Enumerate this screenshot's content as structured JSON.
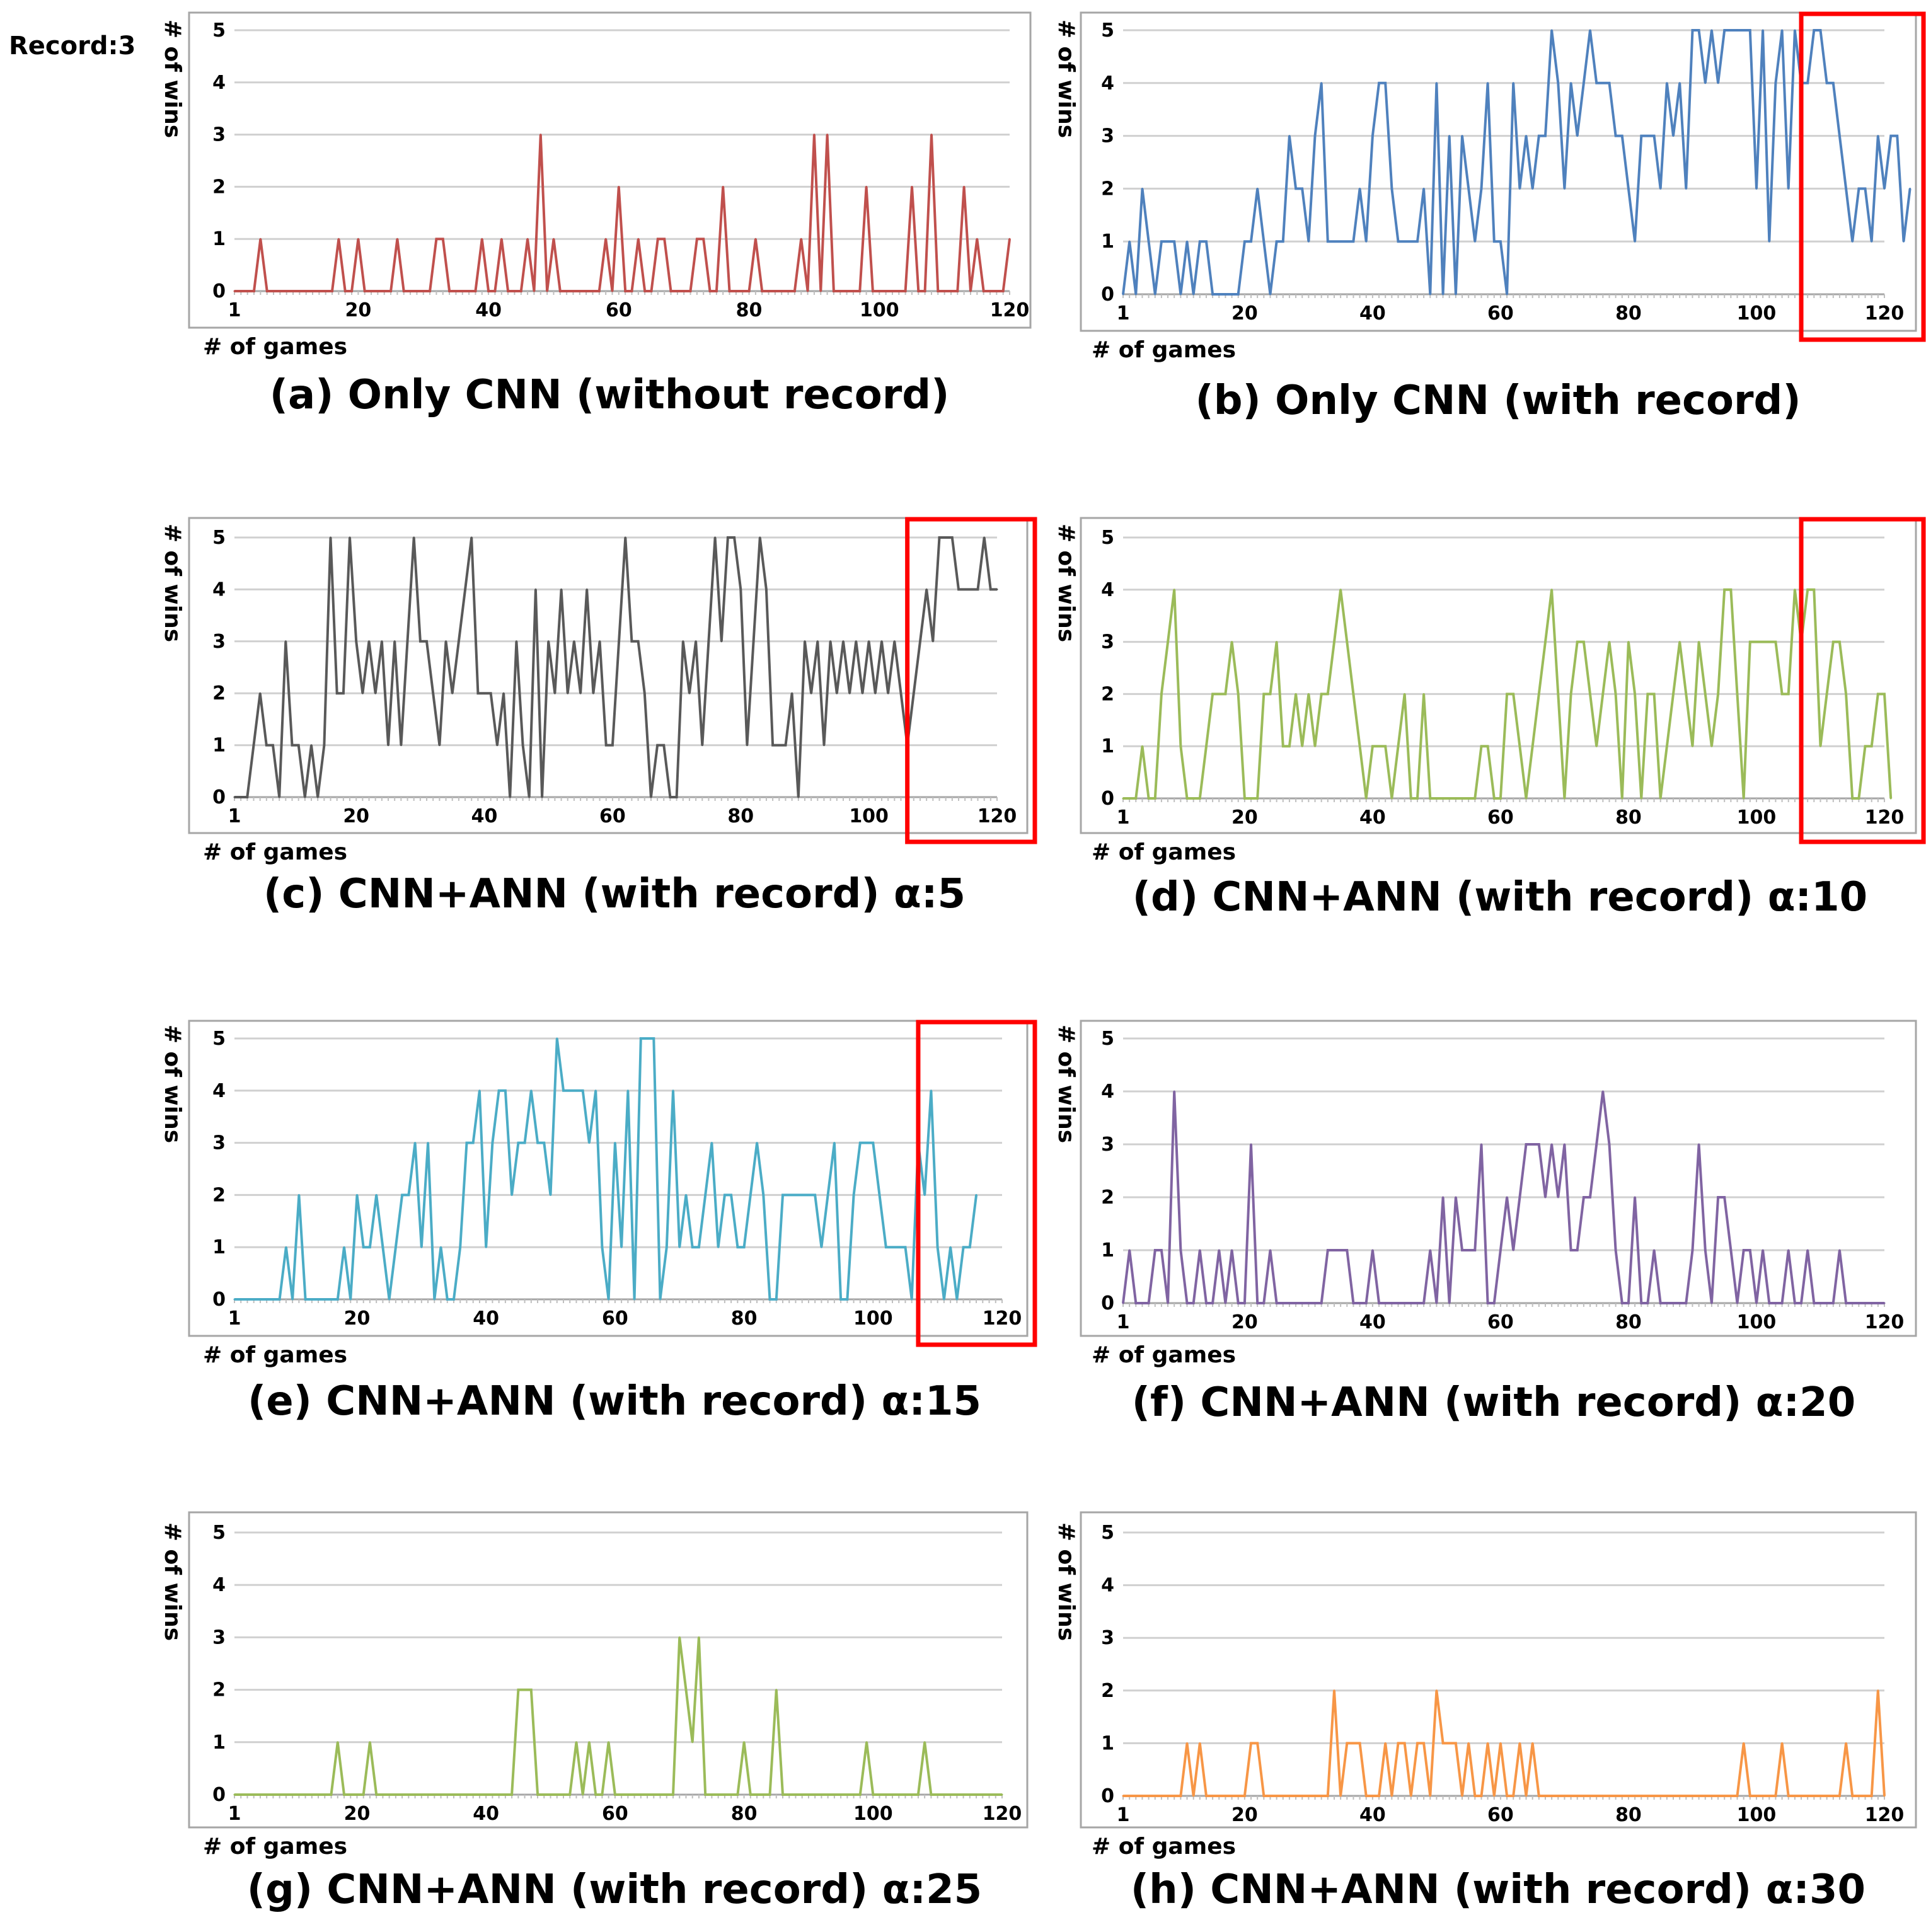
{
  "figure": {
    "record_label": "Record:3",
    "y_axis_label": "# of wins",
    "x_axis_label": "# of games"
  },
  "chart_data": [
    {
      "id": "a",
      "type": "line",
      "title": "(a) Only CNN (without record)",
      "color": "#c0504d",
      "xlabel": "# of games",
      "ylabel": "# of wins",
      "xlim": [
        1,
        120
      ],
      "ylim": [
        0,
        5
      ],
      "x_ticks": [
        1,
        20,
        40,
        60,
        80,
        100,
        120
      ],
      "y_ticks": [
        0,
        1,
        2,
        3,
        4,
        5
      ],
      "highlight": null,
      "series": [
        {
          "name": "Only CNN (without record)",
          "x_start": 1,
          "values": [
            0,
            0,
            0,
            0,
            1,
            0,
            0,
            0,
            0,
            0,
            0,
            0,
            0,
            0,
            0,
            0,
            1,
            0,
            0,
            1,
            0,
            0,
            0,
            0,
            0,
            1,
            0,
            0,
            0,
            0,
            0,
            1,
            1,
            0,
            0,
            0,
            0,
            0,
            1,
            0,
            0,
            1,
            0,
            0,
            0,
            1,
            0,
            3,
            0,
            1,
            0,
            0,
            0,
            0,
            0,
            0,
            0,
            1,
            0,
            2,
            0,
            0,
            1,
            0,
            0,
            1,
            1,
            0,
            0,
            0,
            0,
            1,
            1,
            0,
            0,
            2,
            0,
            0,
            0,
            0,
            1,
            0,
            0,
            0,
            0,
            0,
            0,
            1,
            0,
            3,
            0,
            3,
            0,
            0,
            0,
            0,
            0,
            2,
            0,
            0,
            0,
            0,
            0,
            0,
            2,
            0,
            0,
            3,
            0,
            0,
            0,
            0,
            2,
            0,
            1,
            0,
            0,
            0,
            0,
            1
          ]
        }
      ]
    },
    {
      "id": "b",
      "type": "line",
      "title": "(b) Only CNN (with record)",
      "color": "#4f81bd",
      "xlabel": "# of games",
      "ylabel": "# of wins",
      "xlim": [
        1,
        120
      ],
      "ylim": [
        0,
        5
      ],
      "x_ticks": [
        1,
        20,
        40,
        60,
        80,
        100,
        120
      ],
      "y_ticks": [
        0,
        1,
        2,
        3,
        4,
        5
      ],
      "highlight": [
        107,
        125
      ],
      "series": [
        {
          "name": "Only CNN (with record)",
          "x_start": 1,
          "values": [
            0,
            1,
            0,
            2,
            1,
            0,
            1,
            1,
            1,
            0,
            1,
            0,
            1,
            1,
            0,
            0,
            0,
            0,
            0,
            1,
            1,
            2,
            1,
            0,
            1,
            1,
            3,
            2,
            2,
            1,
            3,
            4,
            1,
            1,
            1,
            1,
            1,
            2,
            1,
            3,
            4,
            4,
            2,
            1,
            1,
            1,
            1,
            2,
            0,
            4,
            0,
            3,
            0,
            3,
            2,
            1,
            2,
            4,
            1,
            1,
            0,
            4,
            2,
            3,
            2,
            3,
            3,
            5,
            4,
            2,
            4,
            3,
            4,
            5,
            4,
            4,
            4,
            3,
            3,
            2,
            1,
            3,
            3,
            3,
            2,
            4,
            3,
            4,
            2,
            5,
            5,
            4,
            5,
            4,
            5,
            5,
            5,
            5,
            5,
            2,
            5,
            1,
            4,
            5,
            2,
            5,
            4,
            4,
            5,
            5,
            4,
            4,
            3,
            2,
            1,
            2,
            2,
            1,
            3,
            2,
            3,
            3,
            1,
            2
          ]
        }
      ]
    },
    {
      "id": "c",
      "type": "line",
      "title": "(c) CNN+ANN (with record) α:5",
      "color": "#595959",
      "xlabel": "# of games",
      "ylabel": "# of wins",
      "xlim": [
        1,
        120
      ],
      "ylim": [
        0,
        5
      ],
      "x_ticks": [
        1,
        20,
        40,
        60,
        80,
        100,
        120
      ],
      "y_ticks": [
        0,
        1,
        2,
        3,
        4,
        5
      ],
      "highlight": [
        106,
        125
      ],
      "series": [
        {
          "name": "CNN+ANN (with record) α:5",
          "x_start": 1,
          "values": [
            0,
            0,
            0,
            1,
            2,
            1,
            1,
            0,
            3,
            1,
            1,
            0,
            1,
            0,
            1,
            5,
            2,
            2,
            5,
            3,
            2,
            3,
            2,
            3,
            1,
            3,
            1,
            3,
            5,
            3,
            3,
            2,
            1,
            3,
            2,
            3,
            4,
            5,
            2,
            2,
            2,
            1,
            2,
            0,
            3,
            1,
            0,
            4,
            0,
            3,
            2,
            4,
            2,
            3,
            2,
            4,
            2,
            3,
            1,
            1,
            3,
            5,
            3,
            3,
            2,
            0,
            1,
            1,
            0,
            0,
            3,
            2,
            3,
            1,
            3,
            5,
            3,
            5,
            5,
            4,
            1,
            3,
            5,
            4,
            1,
            1,
            1,
            2,
            0,
            3,
            2,
            3,
            1,
            3,
            2,
            3,
            2,
            3,
            2,
            3,
            2,
            3,
            2,
            3,
            2,
            1,
            2,
            3,
            4,
            3,
            5,
            5,
            5,
            4,
            4,
            4,
            4,
            5,
            4,
            4
          ]
        }
      ]
    },
    {
      "id": "d",
      "type": "line",
      "title": "(d) CNN+ANN (with record) α:10",
      "color": "#9bbb59",
      "xlabel": "# of games",
      "ylabel": "# of wins",
      "xlim": [
        1,
        120
      ],
      "ylim": [
        0,
        5
      ],
      "x_ticks": [
        1,
        20,
        40,
        60,
        80,
        100,
        120
      ],
      "y_ticks": [
        0,
        1,
        2,
        3,
        4,
        5
      ],
      "highlight": [
        107,
        125
      ],
      "series": [
        {
          "name": "CNN+ANN (with record) α:10",
          "x_start": 1,
          "values": [
            0,
            0,
            0,
            1,
            0,
            0,
            2,
            3,
            4,
            1,
            0,
            0,
            0,
            1,
            2,
            2,
            2,
            3,
            2,
            0,
            0,
            0,
            2,
            2,
            3,
            1,
            1,
            2,
            1,
            2,
            1,
            2,
            2,
            3,
            4,
            3,
            2,
            1,
            0,
            1,
            1,
            1,
            0,
            1,
            2,
            0,
            0,
            2,
            0,
            0,
            0,
            0,
            0,
            0,
            0,
            0,
            1,
            1,
            0,
            0,
            2,
            2,
            1,
            0,
            1,
            2,
            3,
            4,
            2,
            0,
            2,
            3,
            3,
            2,
            1,
            2,
            3,
            2,
            0,
            3,
            2,
            0,
            2,
            2,
            0,
            1,
            2,
            3,
            2,
            1,
            3,
            2,
            1,
            2,
            4,
            4,
            2,
            0,
            3,
            3,
            3,
            3,
            3,
            2,
            2,
            4,
            3,
            4,
            4,
            1,
            2,
            3,
            3,
            2,
            0,
            0,
            1,
            1,
            2,
            2,
            0
          ]
        }
      ]
    },
    {
      "id": "e",
      "type": "line",
      "title": "(e) CNN+ANN (with record) α:15",
      "color": "#4bacc6",
      "xlabel": "# of games",
      "ylabel": "# of wins",
      "xlim": [
        1,
        120
      ],
      "ylim": [
        0,
        5
      ],
      "x_ticks": [
        1,
        20,
        40,
        60,
        80,
        100,
        120
      ],
      "y_ticks": [
        0,
        1,
        2,
        3,
        4,
        5
      ],
      "highlight": [
        107,
        125
      ],
      "series": [
        {
          "name": "CNN+ANN (with record) α:15",
          "x_start": 1,
          "values": [
            0,
            0,
            0,
            0,
            0,
            0,
            0,
            0,
            1,
            0,
            2,
            0,
            0,
            0,
            0,
            0,
            0,
            1,
            0,
            2,
            1,
            1,
            2,
            1,
            0,
            1,
            2,
            2,
            3,
            1,
            3,
            0,
            1,
            0,
            0,
            1,
            3,
            3,
            4,
            1,
            3,
            4,
            4,
            2,
            3,
            3,
            4,
            3,
            3,
            2,
            5,
            4,
            4,
            4,
            4,
            3,
            4,
            1,
            0,
            3,
            1,
            4,
            0,
            5,
            5,
            5,
            0,
            1,
            4,
            1,
            2,
            1,
            1,
            2,
            3,
            1,
            2,
            2,
            1,
            1,
            2,
            3,
            2,
            0,
            0,
            2,
            2,
            2,
            2,
            2,
            2,
            1,
            2,
            3,
            0,
            0,
            2,
            3,
            3,
            3,
            2,
            1,
            1,
            1,
            1,
            0,
            3,
            2,
            4,
            1,
            0,
            1,
            0,
            1,
            1,
            2
          ]
        }
      ]
    },
    {
      "id": "f",
      "type": "line",
      "title": "(f) CNN+ANN (with record) α:20",
      "color": "#8064a2",
      "xlabel": "# of games",
      "ylabel": "# of wins",
      "xlim": [
        1,
        120
      ],
      "ylim": [
        0,
        5
      ],
      "x_ticks": [
        1,
        20,
        40,
        60,
        80,
        100,
        120
      ],
      "y_ticks": [
        0,
        1,
        2,
        3,
        4,
        5
      ],
      "highlight": null,
      "series": [
        {
          "name": "CNN+ANN (with record) α:20",
          "x_start": 1,
          "values": [
            0,
            1,
            0,
            0,
            0,
            1,
            1,
            0,
            4,
            1,
            0,
            0,
            1,
            0,
            0,
            1,
            0,
            1,
            0,
            0,
            3,
            0,
            0,
            1,
            0,
            0,
            0,
            0,
            0,
            0,
            0,
            0,
            1,
            1,
            1,
            1,
            0,
            0,
            0,
            1,
            0,
            0,
            0,
            0,
            0,
            0,
            0,
            0,
            1,
            0,
            2,
            0,
            2,
            1,
            1,
            1,
            3,
            0,
            0,
            1,
            2,
            1,
            2,
            3,
            3,
            3,
            2,
            3,
            2,
            3,
            1,
            1,
            2,
            2,
            3,
            4,
            3,
            1,
            0,
            0,
            2,
            0,
            0,
            1,
            0,
            0,
            0,
            0,
            0,
            1,
            3,
            1,
            0,
            2,
            2,
            1,
            0,
            1,
            1,
            0,
            1,
            0,
            0,
            0,
            1,
            0,
            0,
            1,
            0,
            0,
            0,
            0,
            1,
            0,
            0,
            0,
            0,
            0,
            0,
            0
          ]
        }
      ]
    },
    {
      "id": "g",
      "type": "line",
      "title": "(g) CNN+ANN (with record) α:25",
      "color": "#9bbb59",
      "xlabel": "# of games",
      "ylabel": "# of wins",
      "xlim": [
        1,
        120
      ],
      "ylim": [
        0,
        5
      ],
      "x_ticks": [
        1,
        20,
        40,
        60,
        80,
        100,
        120
      ],
      "y_ticks": [
        0,
        1,
        2,
        3,
        4,
        5
      ],
      "highlight": null,
      "series": [
        {
          "name": "CNN+ANN (with record) α:25",
          "x_start": 1,
          "values": [
            0,
            0,
            0,
            0,
            0,
            0,
            0,
            0,
            0,
            0,
            0,
            0,
            0,
            0,
            0,
            0,
            1,
            0,
            0,
            0,
            0,
            1,
            0,
            0,
            0,
            0,
            0,
            0,
            0,
            0,
            0,
            0,
            0,
            0,
            0,
            0,
            0,
            0,
            0,
            0,
            0,
            0,
            0,
            0,
            2,
            2,
            2,
            0,
            0,
            0,
            0,
            0,
            0,
            1,
            0,
            1,
            0,
            0,
            1,
            0,
            0,
            0,
            0,
            0,
            0,
            0,
            0,
            0,
            0,
            3,
            2,
            1,
            3,
            0,
            0,
            0,
            0,
            0,
            0,
            1,
            0,
            0,
            0,
            0,
            2,
            0,
            0,
            0,
            0,
            0,
            0,
            0,
            0,
            0,
            0,
            0,
            0,
            0,
            1,
            0,
            0,
            0,
            0,
            0,
            0,
            0,
            0,
            1,
            0,
            0,
            0,
            0,
            0,
            0,
            0,
            0,
            0,
            0,
            0,
            0
          ]
        }
      ]
    },
    {
      "id": "h",
      "type": "line",
      "title": "(h) CNN+ANN (with record) α:30",
      "color": "#f79646",
      "xlabel": "# of games",
      "ylabel": "# of wins",
      "xlim": [
        1,
        120
      ],
      "ylim": [
        0,
        5
      ],
      "x_ticks": [
        1,
        20,
        40,
        60,
        80,
        100,
        120
      ],
      "y_ticks": [
        0,
        1,
        2,
        3,
        4,
        5
      ],
      "highlight": null,
      "series": [
        {
          "name": "CNN+ANN (with record) α:30",
          "x_start": 1,
          "values": [
            0,
            0,
            0,
            0,
            0,
            0,
            0,
            0,
            0,
            0,
            1,
            0,
            1,
            0,
            0,
            0,
            0,
            0,
            0,
            0,
            1,
            1,
            0,
            0,
            0,
            0,
            0,
            0,
            0,
            0,
            0,
            0,
            0,
            2,
            0,
            1,
            1,
            1,
            0,
            0,
            0,
            1,
            0,
            1,
            1,
            0,
            1,
            1,
            0,
            2,
            1,
            1,
            1,
            0,
            1,
            0,
            0,
            1,
            0,
            1,
            0,
            0,
            1,
            0,
            1,
            0,
            0,
            0,
            0,
            0,
            0,
            0,
            0,
            0,
            0,
            0,
            0,
            0,
            0,
            0,
            0,
            0,
            0,
            0,
            0,
            0,
            0,
            0,
            0,
            0,
            0,
            0,
            0,
            0,
            0,
            0,
            0,
            1,
            0,
            0,
            0,
            0,
            0,
            1,
            0,
            0,
            0,
            0,
            0,
            0,
            0,
            0,
            0,
            1,
            0,
            0,
            0,
            0,
            2,
            0
          ]
        }
      ]
    }
  ]
}
